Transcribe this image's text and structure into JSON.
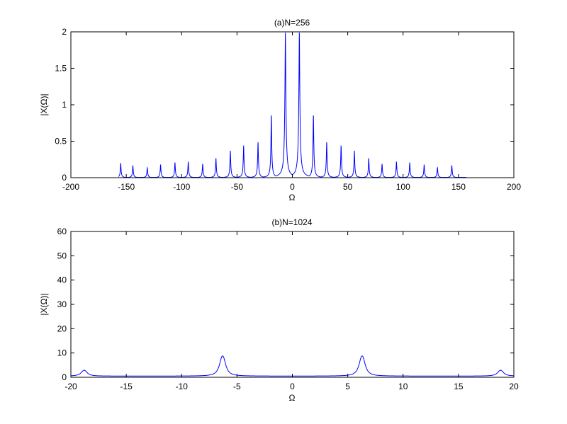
{
  "colors": {
    "series": "#0000ff",
    "axes": "#000000",
    "background": "#ffffff"
  },
  "chart_data": [
    {
      "type": "line",
      "title": "(a)N=256",
      "xlabel": "Ω",
      "ylabel": "|X(Ω)|",
      "xlim": [
        -200,
        200
      ],
      "ylim": [
        0,
        2
      ],
      "xticks": [
        "-200",
        "-150",
        "-100",
        "-50",
        "0",
        "50",
        "100",
        "150",
        "200"
      ],
      "yticks": [
        "0",
        "0.5",
        "1",
        "1.5",
        "2"
      ],
      "grid": false,
      "series": [
        {
          "peaks": [
            {
              "x": -155,
              "y": 0.2
            },
            {
              "x": -144,
              "y": 0.17
            },
            {
              "x": -131,
              "y": 0.14
            },
            {
              "x": -119,
              "y": 0.18
            },
            {
              "x": -106,
              "y": 0.21
            },
            {
              "x": -94,
              "y": 0.22
            },
            {
              "x": -81,
              "y": 0.19
            },
            {
              "x": -69,
              "y": 0.27
            },
            {
              "x": -56,
              "y": 0.37
            },
            {
              "x": -44,
              "y": 0.45
            },
            {
              "x": -31,
              "y": 0.49
            },
            {
              "x": -19,
              "y": 0.88
            },
            {
              "x": -6.3,
              "y": 2.0
            },
            {
              "x": 6.3,
              "y": 2.0
            },
            {
              "x": 19,
              "y": 0.88
            },
            {
              "x": 31,
              "y": 0.49
            },
            {
              "x": 44,
              "y": 0.45
            },
            {
              "x": 56,
              "y": 0.37
            },
            {
              "x": 69,
              "y": 0.27
            },
            {
              "x": 81,
              "y": 0.19
            },
            {
              "x": 94,
              "y": 0.22
            },
            {
              "x": 106,
              "y": 0.21
            },
            {
              "x": 119,
              "y": 0.18
            },
            {
              "x": 131,
              "y": 0.14
            },
            {
              "x": 144,
              "y": 0.17
            }
          ],
          "x_range": [
            -157,
            157
          ]
        }
      ]
    },
    {
      "type": "line",
      "title": "(b)N=1024",
      "xlabel": "Ω",
      "ylabel": "|X(Ω)|",
      "xlim": [
        -20,
        20
      ],
      "ylim": [
        0,
        60
      ],
      "xticks": [
        "-20",
        "-15",
        "-10",
        "-5",
        "0",
        "5",
        "10",
        "15",
        "20"
      ],
      "yticks": [
        "0",
        "10",
        "20",
        "30",
        "40",
        "50",
        "60"
      ],
      "grid": false,
      "series": [
        {
          "peaks": [
            {
              "x": -18.8,
              "y": 2.9
            },
            {
              "x": -6.3,
              "y": 8.8
            },
            {
              "x": 6.3,
              "y": 8.8
            },
            {
              "x": 18.8,
              "y": 2.9
            }
          ],
          "baseline": 0.5,
          "x_range": [
            -20,
            20
          ]
        }
      ]
    }
  ]
}
